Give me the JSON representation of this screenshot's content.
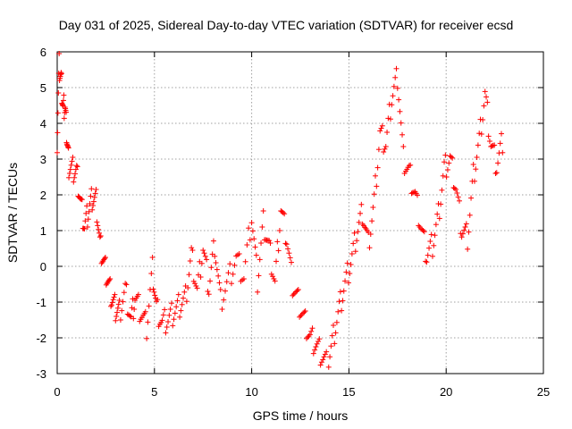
{
  "chart_data": {
    "type": "scatter",
    "title": "Day 031 of 2025, Sidereal Day-to-day VTEC variation (SDTVAR) for receiver ecsd",
    "xlabel": "GPS time / hours",
    "ylabel": "SDTVAR / TECUs",
    "xlim": [
      0,
      25
    ],
    "ylim": [
      -3,
      6
    ],
    "xticks": [
      "0",
      "5",
      "10",
      "15",
      "20",
      "25"
    ],
    "yticks": [
      "-3",
      "-2",
      "-1",
      "0",
      "1",
      "2",
      "3",
      "4",
      "5",
      "6"
    ],
    "grid": true,
    "marker": "+",
    "color": "#ff0000",
    "series": [
      {
        "name": "SDTVAR",
        "x": [
          0.0,
          0.1,
          0.2,
          0.3,
          0.4,
          0.5,
          0.6,
          0.8,
          1.0,
          1.2,
          1.4,
          1.6,
          1.8,
          2.0,
          2.2,
          2.4,
          2.6,
          2.8,
          3.0,
          3.2,
          3.5,
          3.8,
          4.0,
          4.3,
          4.6,
          4.9,
          5.1,
          5.4,
          5.7,
          6.0,
          6.3,
          6.6,
          6.9,
          7.2,
          7.5,
          7.8,
          8.1,
          8.4,
          8.8,
          9.2,
          9.6,
          10.0,
          10.3,
          10.6,
          10.9,
          11.2,
          11.5,
          11.8,
          12.1,
          12.4,
          12.7,
          13.0,
          13.3,
          13.6,
          13.9,
          14.2,
          14.5,
          14.8,
          15.1,
          15.4,
          15.7,
          16.0,
          16.3,
          16.6,
          16.9,
          17.2,
          17.5,
          17.8,
          18.1,
          18.4,
          18.7,
          19.0,
          19.3,
          19.6,
          19.9,
          20.2,
          20.5,
          20.8,
          21.1,
          21.4,
          21.7,
          22.0,
          22.3,
          22.6,
          22.9
        ],
        "y": [
          3.5,
          5.6,
          5.2,
          4.4,
          4.5,
          3.6,
          2.8,
          2.7,
          2.6,
          1.8,
          1.1,
          1.5,
          1.9,
          1.8,
          0.6,
          0.1,
          -0.4,
          -0.9,
          -1.2,
          -1.3,
          -0.7,
          -1.5,
          -0.9,
          -1.3,
          -1.7,
          -0.1,
          -1.2,
          -1.6,
          -1.5,
          -1.3,
          -1.1,
          -0.9,
          0.3,
          -0.7,
          0.5,
          -0.6,
          0.6,
          -1.0,
          -0.4,
          0.2,
          -0.3,
          1.4,
          -0.4,
          1.2,
          0.5,
          -0.5,
          1.6,
          0.8,
          -0.5,
          -1.0,
          -1.5,
          -2.0,
          -2.2,
          -2.5,
          -2.8,
          -2.0,
          -1.2,
          -0.5,
          0.1,
          0.9,
          1.5,
          0.6,
          1.8,
          3.7,
          3.4,
          4.7,
          5.3,
          3.0,
          2.6,
          2.0,
          1.1,
          0.3,
          0.6,
          1.4,
          2.7,
          3.0,
          2.2,
          1.0,
          0.8,
          2.5,
          3.5,
          4.8,
          3.4,
          2.8,
          3.5
        ]
      }
    ]
  }
}
